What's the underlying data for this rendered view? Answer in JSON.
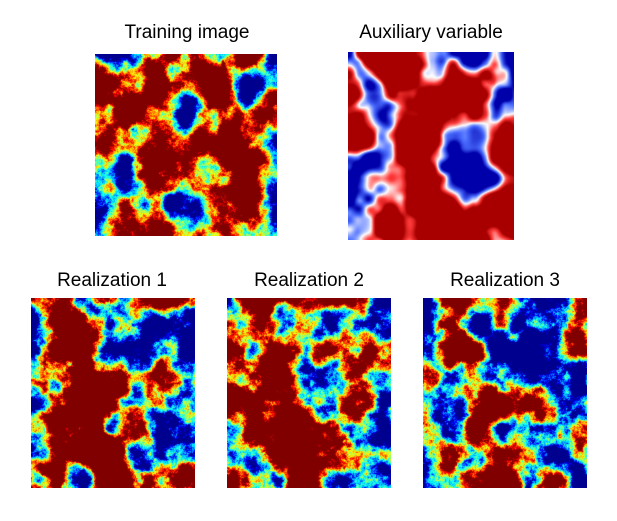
{
  "panels": {
    "training": {
      "title": "Training image"
    },
    "auxiliary": {
      "title": "Auxiliary variable"
    },
    "real1": {
      "title": "Realization 1"
    },
    "real2": {
      "title": "Realization 2"
    },
    "real3": {
      "title": "Realization 3"
    }
  },
  "colormaps": {
    "jet": [
      "#00008f",
      "#0000ff",
      "#00a0ff",
      "#00ffff",
      "#80ff80",
      "#ffff00",
      "#ff8000",
      "#ff0000",
      "#800000"
    ],
    "diverging": [
      "#0000aa",
      "#4a6dff",
      "#ffffff",
      "#ff3a3a",
      "#a80000"
    ]
  }
}
